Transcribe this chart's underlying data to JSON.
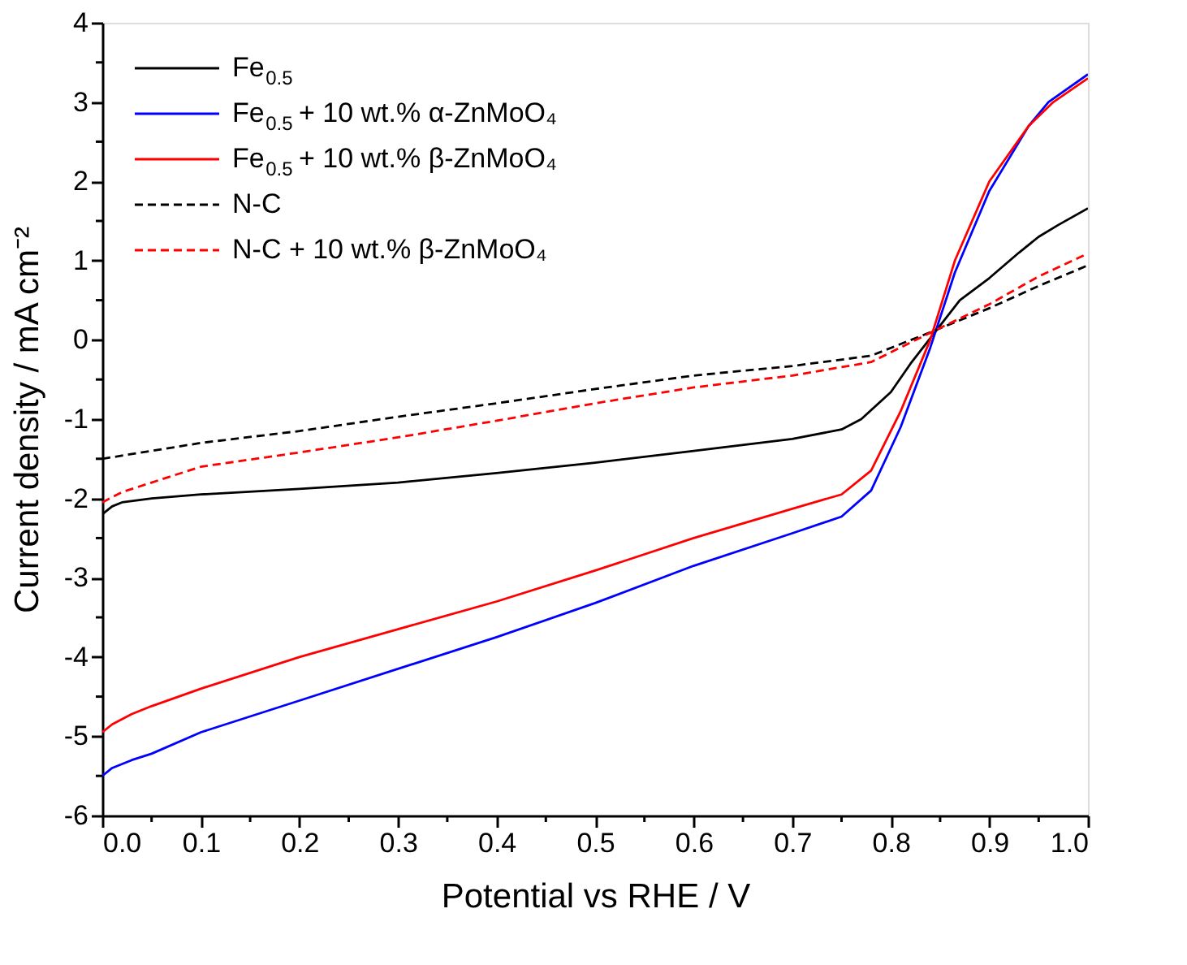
{
  "chart_data": {
    "type": "line",
    "xlabel": "Potential vs RHE / V",
    "ylabel": "Current density / mA cm⁻²",
    "xlim": [
      0,
      1
    ],
    "ylim": [
      -6,
      4
    ],
    "xticks": [
      {
        "value": 0,
        "label": "0.0"
      },
      {
        "value": 0.05,
        "label": null
      },
      {
        "value": 0.1,
        "label": "0.1"
      },
      {
        "value": 0.15,
        "label": null
      },
      {
        "value": 0.2,
        "label": "0.2"
      },
      {
        "value": 0.25,
        "label": null
      },
      {
        "value": 0.3,
        "label": "0.3"
      },
      {
        "value": 0.35,
        "label": null
      },
      {
        "value": 0.4,
        "label": "0.4"
      },
      {
        "value": 0.45,
        "label": null
      },
      {
        "value": 0.5,
        "label": "0.5"
      },
      {
        "value": 0.55,
        "label": null
      },
      {
        "value": 0.6,
        "label": "0.6"
      },
      {
        "value": 0.65,
        "label": null
      },
      {
        "value": 0.7,
        "label": "0.7"
      },
      {
        "value": 0.75,
        "label": null
      },
      {
        "value": 0.8,
        "label": "0.8"
      },
      {
        "value": 0.85,
        "label": null
      },
      {
        "value": 0.9,
        "label": "0.9"
      },
      {
        "value": 0.95,
        "label": null
      },
      {
        "value": 1,
        "label": "1.0"
      }
    ],
    "yticks": [
      -6,
      {
        "value": -5.5,
        "label": null
      },
      -5,
      {
        "value": -4.5,
        "label": null
      },
      -4,
      {
        "value": -3.5,
        "label": null
      },
      -3,
      {
        "value": -2.5,
        "label": null
      },
      -2,
      {
        "value": -1.5,
        "label": null
      },
      -1,
      {
        "value": -0.5,
        "label": null
      },
      0,
      {
        "value": 0.5,
        "label": null
      },
      1,
      {
        "value": 1.5,
        "label": null
      },
      2,
      {
        "value": 2.5,
        "label": null
      },
      3,
      {
        "value": 3.5,
        "label": null
      },
      4
    ],
    "grid": false,
    "legend": "top left",
    "marker": "none",
    "series": [
      {
        "name": "Fe$_{0.5}$",
        "color": "#000000",
        "line_style": "solid",
        "x": [
          0,
          0.01,
          0.02,
          0.05,
          0.1,
          0.2,
          0.3,
          0.4,
          0.5,
          0.6,
          0.7,
          0.75,
          0.77,
          0.8,
          0.82,
          0.845,
          0.87,
          0.9,
          0.93,
          0.95,
          0.97,
          1.0
        ],
        "values": [
          -2.2,
          -2.1,
          -2.05,
          -2.0,
          -1.95,
          -1.88,
          -1.8,
          -1.68,
          -1.55,
          -1.4,
          -1.25,
          -1.13,
          -1.0,
          -0.66,
          -0.3,
          0.1,
          0.5,
          0.78,
          1.1,
          1.3,
          1.45,
          1.66
        ]
      },
      {
        "name": "Fe$_{0.5}$ + 10 wt.% α-ZnMoO₄",
        "color": "#0000ff",
        "line_style": "solid",
        "x": [
          0,
          0.01,
          0.03,
          0.05,
          0.1,
          0.2,
          0.3,
          0.4,
          0.5,
          0.6,
          0.7,
          0.75,
          0.78,
          0.81,
          0.84,
          0.865,
          0.9,
          0.94,
          0.96,
          1.0
        ],
        "values": [
          -5.5,
          -5.4,
          -5.3,
          -5.22,
          -4.95,
          -4.55,
          -4.15,
          -3.75,
          -3.32,
          -2.85,
          -2.44,
          -2.23,
          -1.9,
          -1.1,
          -0.1,
          0.85,
          1.88,
          2.7,
          3.0,
          3.35
        ]
      },
      {
        "name": "Fe$_{0.5}$ + 10 wt.% β-ZnMoO₄",
        "color": "#ff0000",
        "line_style": "solid",
        "x": [
          0,
          0.01,
          0.03,
          0.05,
          0.1,
          0.2,
          0.3,
          0.4,
          0.5,
          0.6,
          0.7,
          0.75,
          0.78,
          0.81,
          0.84,
          0.865,
          0.9,
          0.94,
          0.965,
          1.0
        ],
        "values": [
          -4.95,
          -4.85,
          -4.72,
          -4.62,
          -4.4,
          -4.0,
          -3.65,
          -3.3,
          -2.91,
          -2.5,
          -2.13,
          -1.95,
          -1.65,
          -0.9,
          0.0,
          1.0,
          2.0,
          2.7,
          3.0,
          3.3
        ]
      },
      {
        "name": "N-C",
        "color": "#000000",
        "line_style": "dashed",
        "x": [
          0,
          0.1,
          0.2,
          0.3,
          0.4,
          0.5,
          0.6,
          0.7,
          0.78,
          0.845,
          0.9,
          0.95,
          1.0
        ],
        "values": [
          -1.5,
          -1.3,
          -1.15,
          -0.97,
          -0.8,
          -0.62,
          -0.45,
          -0.33,
          -0.2,
          0.12,
          0.4,
          0.68,
          0.94
        ]
      },
      {
        "name": "N-C + 10 wt.% β-ZnMoO₄",
        "color": "#ff0000",
        "line_style": "dashed",
        "x": [
          0,
          0.02,
          0.05,
          0.1,
          0.2,
          0.3,
          0.4,
          0.5,
          0.6,
          0.7,
          0.78,
          0.845,
          0.9,
          0.95,
          1.0
        ],
        "values": [
          -2.05,
          -1.92,
          -1.8,
          -1.6,
          -1.42,
          -1.23,
          -1.02,
          -0.8,
          -0.6,
          -0.45,
          -0.28,
          0.12,
          0.45,
          0.8,
          1.09
        ]
      }
    ]
  }
}
